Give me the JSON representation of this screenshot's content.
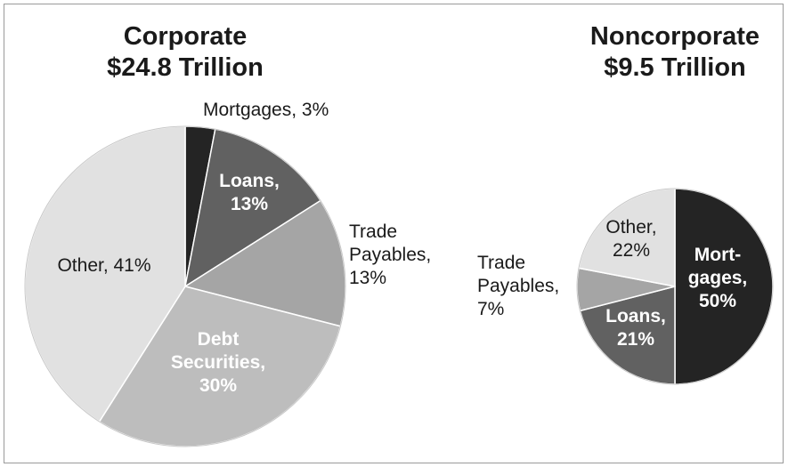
{
  "chart_data": [
    {
      "type": "pie",
      "title": "Corporate",
      "subtitle": "$24.8 Trillion",
      "slices": [
        {
          "label_lines": [
            "Mortgages, 3%"
          ],
          "value": 3,
          "color": "#242424",
          "label_style": "dark"
        },
        {
          "label_lines": [
            "Loans,",
            "13%"
          ],
          "value": 13,
          "color": "#616161",
          "label_style": "light"
        },
        {
          "label_lines": [
            "Trade",
            "Payables,",
            "13%"
          ],
          "value": 13,
          "color": "#a5a5a5",
          "label_style": "dark"
        },
        {
          "label_lines": [
            "Debt",
            "Securities,",
            "30%"
          ],
          "value": 30,
          "color": "#bdbdbd",
          "label_style": "light"
        },
        {
          "label_lines": [
            "Other, 41%"
          ],
          "value": 41,
          "color": "#e1e1e1",
          "label_style": "dark"
        }
      ]
    },
    {
      "type": "pie",
      "title": "Noncorporate",
      "subtitle": "$9.5 Trillion",
      "slices": [
        {
          "label_lines": [
            "Mort-",
            "gages,",
            "50%"
          ],
          "value": 50,
          "color": "#242424",
          "label_style": "light"
        },
        {
          "label_lines": [
            "Loans,",
            "21%"
          ],
          "value": 21,
          "color": "#616161",
          "label_style": "light"
        },
        {
          "label_lines": [
            "Trade",
            "Payables,",
            "7%"
          ],
          "value": 7,
          "color": "#a5a5a5",
          "label_style": "dark"
        },
        {
          "label_lines": [
            "Other,",
            "22%"
          ],
          "value": 22,
          "color": "#e1e1e1",
          "label_style": "dark"
        }
      ]
    }
  ]
}
